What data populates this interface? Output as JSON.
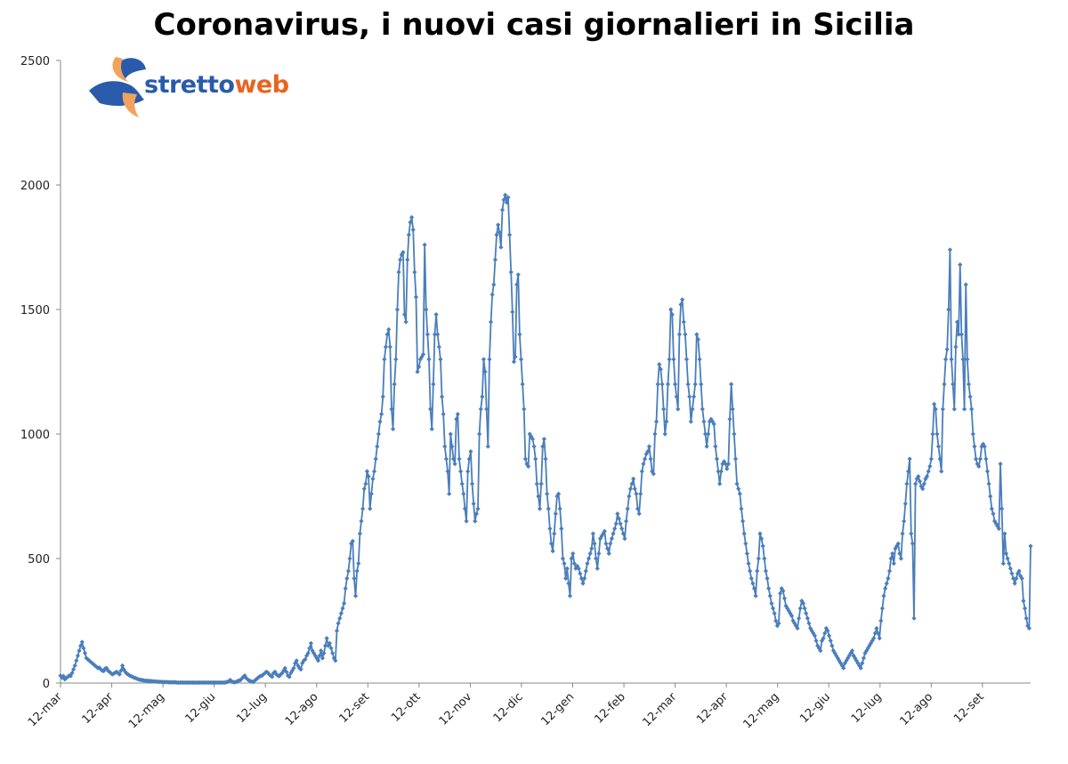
{
  "chart_data": {
    "type": "line",
    "title": "Coronavirus, i nuovi casi giornalieri in Sicilia",
    "xlabel": "",
    "ylabel": "",
    "ylim": [
      0,
      2500
    ],
    "yticks": [
      0,
      500,
      1000,
      1500,
      2000,
      2500
    ],
    "xtick_labels": [
      "12-mar",
      "12-apr",
      "12-mag",
      "12-giu",
      "12-lug",
      "12-ago",
      "12-set",
      "12-ott",
      "12-nov",
      "12-dic",
      "12-gen",
      "12-feb",
      "12-mar",
      "12-apr",
      "12-mag",
      "12-giu",
      "12-lug",
      "12-ago",
      "12-set"
    ],
    "grid": false,
    "line_color": "#4a7ebb",
    "series": [
      {
        "name": "",
        "x_start": "2020-03-02",
        "values": [
          30,
          22,
          28,
          15,
          20,
          25,
          30,
          28,
          40,
          55,
          70,
          90,
          110,
          130,
          150,
          165,
          140,
          120,
          100,
          95,
          90,
          85,
          80,
          75,
          70,
          65,
          60,
          62,
          55,
          50,
          48,
          58,
          60,
          50,
          45,
          40,
          35,
          38,
          42,
          45,
          40,
          35,
          50,
          70,
          55,
          45,
          38,
          35,
          30,
          28,
          25,
          22,
          20,
          18,
          15,
          14,
          12,
          12,
          10,
          10,
          9,
          9,
          8,
          8,
          7,
          7,
          6,
          6,
          5,
          5,
          5,
          4,
          4,
          4,
          4,
          3,
          3,
          3,
          3,
          3,
          3,
          2,
          2,
          2,
          2,
          2,
          2,
          2,
          2,
          2,
          2,
          2,
          2,
          2,
          2,
          2,
          2,
          2,
          2,
          2,
          2,
          2,
          2,
          2,
          2,
          2,
          2,
          2,
          2,
          2,
          2,
          2,
          2,
          2,
          2,
          3,
          5,
          8,
          12,
          6,
          4,
          3,
          5,
          8,
          10,
          12,
          18,
          25,
          30,
          20,
          15,
          10,
          8,
          6,
          5,
          10,
          15,
          20,
          25,
          28,
          30,
          35,
          40,
          45,
          42,
          35,
          30,
          25,
          40,
          45,
          35,
          30,
          28,
          35,
          40,
          50,
          60,
          45,
          30,
          25,
          40,
          50,
          60,
          80,
          90,
          70,
          60,
          55,
          80,
          90,
          95,
          110,
          120,
          140,
          160,
          130,
          120,
          110,
          100,
          90,
          110,
          130,
          100,
          120,
          150,
          180,
          150,
          160,
          140,
          120,
          100,
          90,
          210,
          240,
          260,
          280,
          300,
          320,
          380,
          420,
          450,
          500,
          560,
          570,
          420,
          350,
          450,
          480,
          600,
          650,
          700,
          780,
          800,
          850,
          830,
          700,
          760,
          820,
          850,
          900,
          950,
          1000,
          1050,
          1080,
          1150,
          1300,
          1350,
          1400,
          1420,
          1350,
          1100,
          1020,
          1200,
          1300,
          1500,
          1650,
          1700,
          1720,
          1730,
          1480,
          1450,
          1700,
          1800,
          1850,
          1870,
          1820,
          1650,
          1550,
          1250,
          1270,
          1300,
          1310,
          1320,
          1760,
          1500,
          1400,
          1300,
          1100,
          1020,
          1200,
          1400,
          1480,
          1400,
          1350,
          1300,
          1150,
          1080,
          950,
          900,
          850,
          760,
          1000,
          950,
          900,
          880,
          1060,
          1080,
          900,
          850,
          800,
          760,
          700,
          650,
          850,
          900,
          930,
          800,
          720,
          650,
          680,
          700,
          1000,
          1100,
          1150,
          1300,
          1250,
          1100,
          950,
          1300,
          1450,
          1560,
          1600,
          1700,
          1800,
          1840,
          1810,
          1750,
          1900,
          1940,
          1960,
          1930,
          1950,
          1800,
          1650,
          1490,
          1290,
          1310,
          1600,
          1640,
          1400,
          1300,
          1200,
          1100,
          900,
          880,
          870,
          1000,
          990,
          980,
          950,
          900,
          800,
          750,
          700,
          800,
          950,
          980,
          900,
          760,
          700,
          620,
          560,
          530,
          600,
          680,
          750,
          760,
          700,
          620,
          500,
          480,
          420,
          460,
          400,
          350,
          500,
          520,
          480,
          460,
          470,
          460,
          440,
          420,
          400,
          420,
          450,
          480,
          500,
          520,
          540,
          600,
          560,
          500,
          460,
          520,
          580,
          590,
          600,
          610,
          560,
          540,
          520,
          560,
          580,
          600,
          620,
          640,
          680,
          660,
          640,
          620,
          600,
          580,
          650,
          700,
          750,
          780,
          800,
          820,
          780,
          760,
          700,
          680,
          760,
          850,
          880,
          900,
          920,
          930,
          950,
          900,
          850,
          840,
          1000,
          1050,
          1200,
          1280,
          1260,
          1200,
          1100,
          1000,
          1050,
          1200,
          1300,
          1500,
          1480,
          1300,
          1200,
          1150,
          1100,
          1400,
          1520,
          1540,
          1450,
          1400,
          1300,
          1200,
          1150,
          1050,
          1100,
          1150,
          1200,
          1400,
          1380,
          1300,
          1200,
          1100,
          1050,
          1000,
          950,
          1000,
          1050,
          1060,
          1050,
          1040,
          950,
          900,
          850,
          800,
          850,
          880,
          890,
          880,
          860,
          880,
          1060,
          1200,
          1100,
          1000,
          900,
          800,
          780,
          760,
          700,
          650,
          600,
          560,
          520,
          480,
          450,
          420,
          400,
          380,
          350,
          450,
          500,
          600,
          580,
          550,
          500,
          450,
          420,
          380,
          350,
          320,
          300,
          280,
          250,
          230,
          240,
          360,
          380,
          370,
          340,
          310,
          300,
          290,
          280,
          270,
          250,
          240,
          230,
          220,
          260,
          300,
          330,
          320,
          300,
          280,
          260,
          240,
          220,
          210,
          200,
          190,
          170,
          150,
          140,
          130,
          170,
          180,
          200,
          220,
          210,
          190,
          170,
          150,
          130,
          120,
          110,
          100,
          90,
          80,
          70,
          60,
          80,
          90,
          100,
          110,
          120,
          130,
          110,
          100,
          90,
          80,
          70,
          60,
          80,
          100,
          120,
          130,
          140,
          150,
          160,
          170,
          180,
          200,
          220,
          200,
          180,
          250,
          300,
          350,
          380,
          400,
          420,
          450,
          500,
          520,
          480,
          540,
          550,
          560,
          520,
          500,
          600,
          650,
          720,
          800,
          850,
          900,
          600,
          560,
          260,
          800,
          820,
          830,
          810,
          790,
          780,
          800,
          820,
          830,
          850,
          870,
          900,
          1000,
          1120,
          1100,
          1000,
          950,
          900,
          850,
          1100,
          1200,
          1300,
          1340,
          1500,
          1740,
          1300,
          1200,
          1100,
          1350,
          1450,
          1400,
          1680,
          1400,
          1300,
          1100,
          1600,
          1300,
          1200,
          1150,
          1100,
          1000,
          950,
          900,
          880,
          870,
          900,
          950,
          960,
          950,
          900,
          850,
          800,
          750,
          700,
          680,
          650,
          640,
          630,
          620,
          880,
          700,
          480,
          600,
          520,
          500,
          480,
          460,
          440,
          420,
          400,
          420,
          440,
          450,
          430,
          420,
          330,
          300,
          260,
          230,
          220,
          550
        ]
      }
    ]
  }
}
